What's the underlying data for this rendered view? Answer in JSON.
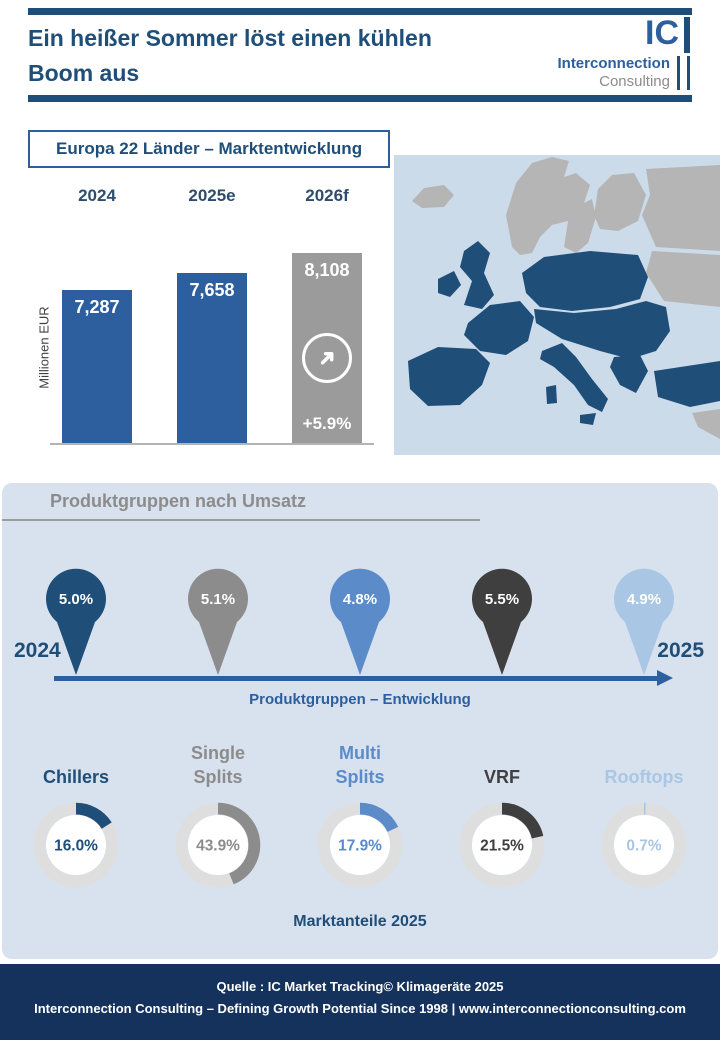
{
  "colors": {
    "dark_blue": "#1f4e79",
    "bar_blue": "#2d5f9e",
    "gray": "#8c8c8c",
    "mid_blue": "#5b8bc9",
    "charcoal": "#3f3f3f",
    "light_blue": "#a9c6e4",
    "panel_bg": "#d8e1ee",
    "map_sea": "#ccdbea",
    "map_highlight": "#1f4e79",
    "map_land_gray": "#b5b5b5",
    "footer_bg": "#14325c"
  },
  "icons": {
    "growth_arrow": "➜"
  },
  "header": {
    "title_line1": "Ein heißer Sommer löst einen kühlen",
    "title_line2": "Boom aus",
    "logo_ic": "IC",
    "logo_line1": "Interconnection",
    "logo_line2": "Consulting"
  },
  "market": {
    "section_title": "Europa 22 Länder – Marktentwicklung",
    "y_axis_label": "Millionen EUR"
  },
  "chart_data": [
    {
      "type": "bar",
      "title": "Europa 22 Länder – Marktentwicklung",
      "ylabel": "Millionen EUR",
      "categories": [
        "2024",
        "2025e",
        "2026f"
      ],
      "values": [
        7287,
        7658,
        8108
      ],
      "value_labels": [
        "7,287",
        "7,658",
        "8,108"
      ],
      "bar_colors": [
        "#2d5f9e",
        "#2d5f9e",
        "#9b9b9b"
      ],
      "growth_label": "+5.9%",
      "ylim": [
        0,
        8500
      ]
    },
    {
      "type": "bar",
      "title": "Produktgruppen – Entwicklung (2024 → 2025)",
      "categories": [
        "Chillers",
        "Single Splits",
        "Multi Splits",
        "VRF",
        "Rooftops"
      ],
      "values": [
        5.0,
        5.1,
        4.8,
        5.5,
        4.9
      ],
      "unit": "%"
    },
    {
      "type": "pie",
      "title": "Marktanteile 2025",
      "categories": [
        "Chillers",
        "Single Splits",
        "Multi Splits",
        "VRF",
        "Rooftops"
      ],
      "values": [
        16.0,
        43.9,
        17.9,
        21.5,
        0.7
      ],
      "unit": "%"
    }
  ],
  "product_section": {
    "heading": "Produktgruppen nach Umsatz",
    "year_start": "2024",
    "year_end": "2025",
    "timeline_label": "Produktgruppen – Entwicklung",
    "pins": [
      {
        "label": "5.0%",
        "color": "#1f4e79"
      },
      {
        "label": "5.1%",
        "color": "#8c8c8c"
      },
      {
        "label": "4.8%",
        "color": "#5b8bc9"
      },
      {
        "label": "5.5%",
        "color": "#3f3f3f"
      },
      {
        "label": "4.9%",
        "color": "#a9c6e4"
      }
    ],
    "donuts": [
      {
        "label": "Chillers",
        "value": "16.0%",
        "pct": 16.0,
        "color": "#1f4e79"
      },
      {
        "label": "Single Splits",
        "value": "43.9%",
        "pct": 43.9,
        "color": "#8c8c8c"
      },
      {
        "label": "Multi Splits",
        "value": "17.9%",
        "pct": 17.9,
        "color": "#5b8bc9"
      },
      {
        "label": "VRF",
        "value": "21.5%",
        "pct": 21.5,
        "color": "#3f3f3f"
      },
      {
        "label": "Rooftops",
        "value": "0.7%",
        "pct": 0.7,
        "color": "#a9c6e4"
      }
    ],
    "caption": "Marktanteile 2025"
  },
  "footer": {
    "line1": "Quelle : IC Market Tracking© Klimageräte 2025",
    "line2": "Interconnection Consulting – Defining Growth Potential Since 1998 | www.interconnectionconsulting.com"
  }
}
